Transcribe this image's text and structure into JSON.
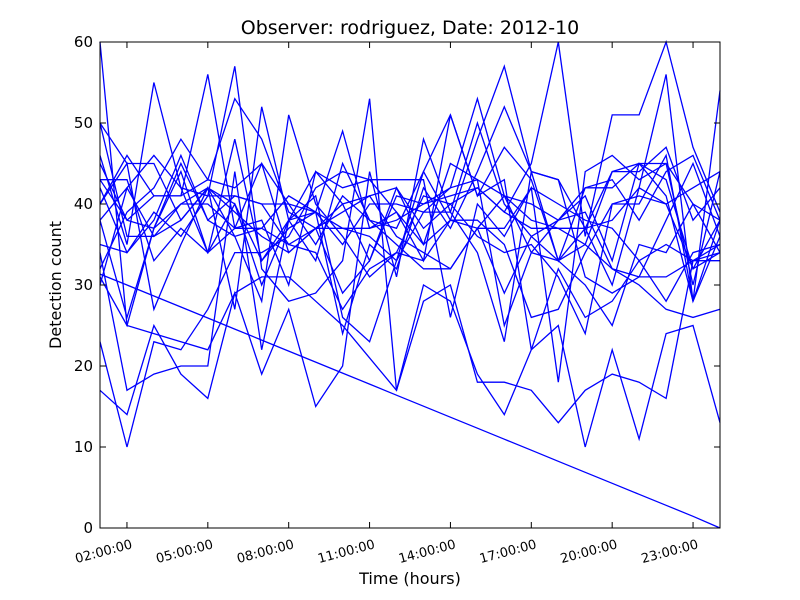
{
  "chart_data": {
    "type": "line",
    "title": "Observer: rodriguez, Date: 2012-10",
    "xlabel": "Time (hours)",
    "ylabel": "Detection count",
    "x_ticks": [
      "02:00:00",
      "05:00:00",
      "08:00:00",
      "11:00:00",
      "14:00:00",
      "17:00:00",
      "20:00:00",
      "23:00:00"
    ],
    "y_ticks": [
      "0",
      "10",
      "20",
      "30",
      "40",
      "50",
      "60"
    ],
    "xlim": [
      "2012-10-01 01:00",
      "2012-10-02 00:00"
    ],
    "ylim": [
      0,
      60
    ],
    "grid": false,
    "line_color": "#0000ff",
    "x": [
      "01:00",
      "02:00",
      "03:00",
      "04:00",
      "05:00",
      "06:00",
      "07:00",
      "08:00",
      "09:00",
      "10:00",
      "11:00",
      "12:00",
      "13:00",
      "14:00",
      "15:00",
      "16:00",
      "17:00",
      "18:00",
      "19:00",
      "20:00",
      "21:00",
      "22:00",
      "23:00",
      "00:00"
    ],
    "series": [
      {
        "values": [
          60,
          25,
          24,
          23,
          22,
          29,
          31,
          31,
          28,
          25,
          21,
          17,
          30,
          28,
          19,
          14,
          22,
          25,
          10,
          22,
          11,
          24,
          25,
          13
        ]
      },
      {
        "values": [
          23,
          10,
          23,
          22,
          27,
          34,
          34,
          36,
          42,
          44,
          43,
          39,
          33,
          51,
          41,
          47,
          43,
          33,
          37,
          38,
          42,
          56,
          28,
          38
        ]
      },
      {
        "values": [
          45,
          38,
          41,
          41,
          56,
          37,
          38,
          30,
          44,
          40,
          33,
          42,
          35,
          38,
          38,
          35,
          26,
          27,
          34,
          40,
          40,
          46,
          28,
          36
        ]
      },
      {
        "values": [
          30,
          42,
          46,
          42,
          34,
          37,
          37,
          41,
          39,
          37,
          37,
          39,
          35,
          45,
          43,
          41,
          38,
          37,
          35,
          44,
          44,
          47,
          38,
          42
        ]
      },
      {
        "values": [
          50,
          45,
          45,
          38,
          42,
          36,
          37,
          35,
          34,
          27,
          32,
          34,
          41,
          40,
          42,
          39,
          45,
          60,
          36,
          51,
          51,
          60,
          47,
          39
        ]
      },
      {
        "values": [
          40,
          45,
          27,
          35,
          42,
          27,
          52,
          38,
          39,
          24,
          35,
          32,
          42,
          37,
          44,
          52,
          44,
          43,
          37,
          44,
          45,
          43,
          32,
          38
        ]
      },
      {
        "values": [
          43,
          43,
          33,
          37,
          34,
          48,
          33,
          37,
          39,
          49,
          37,
          38,
          40,
          42,
          53,
          41,
          34,
          38,
          41,
          33,
          45,
          41,
          28,
          54
        ]
      },
      {
        "values": [
          46,
          35,
          55,
          42,
          41,
          57,
          32,
          28,
          29,
          33,
          53,
          17,
          28,
          30,
          18,
          18,
          17,
          13,
          17,
          19,
          18,
          16,
          33,
          35
        ]
      },
      {
        "values": [
          17,
          14,
          25,
          19,
          16,
          29,
          19,
          27,
          15,
          20,
          44,
          31,
          48,
          39,
          34,
          23,
          44,
          43,
          31,
          29,
          31,
          38,
          45,
          36
        ]
      },
      {
        "values": [
          43,
          38,
          37,
          45,
          38,
          36,
          28,
          51,
          40,
          36,
          31,
          34,
          33,
          38,
          48,
          57,
          44,
          33,
          42,
          42,
          45,
          45,
          30,
          44
        ]
      },
      {
        "values": [
          38,
          26,
          37,
          44,
          34,
          40,
          30,
          38,
          44,
          42,
          43,
          43,
          43,
          26,
          40,
          36,
          42,
          18,
          44,
          46,
          43,
          45,
          40,
          34
        ]
      },
      {
        "values": [
          40,
          46,
          41,
          41,
          43,
          42,
          45,
          40,
          39,
          35,
          40,
          40,
          39,
          39,
          50,
          40,
          36,
          38,
          42,
          43,
          38,
          44,
          46,
          38
        ]
      },
      {
        "values": [
          42,
          34,
          38,
          46,
          38,
          41,
          40,
          35,
          37,
          39,
          41,
          42,
          37,
          40,
          36,
          34,
          35,
          31,
          24,
          40,
          41,
          40,
          32,
          34
        ]
      },
      {
        "values": [
          34,
          17,
          19,
          20,
          20,
          44,
          22,
          38,
          41,
          26,
          23,
          33,
          39,
          42,
          43,
          25,
          34,
          33,
          30,
          25,
          35,
          34,
          40,
          38
        ]
      },
      {
        "values": [
          32,
          39,
          42,
          48,
          43,
          53,
          48,
          39,
          37,
          29,
          33,
          41,
          40,
          41,
          42,
          39,
          37,
          37,
          37,
          30,
          42,
          40,
          42,
          44
        ]
      },
      {
        "values": [
          38,
          42,
          36,
          40,
          40,
          37,
          45,
          34,
          37,
          37,
          36,
          33,
          44,
          51,
          41,
          43,
          22,
          32,
          26,
          28,
          33,
          28,
          34,
          35
        ]
      },
      {
        "values": [
          50,
          36,
          36,
          38,
          42,
          40,
          33,
          38,
          33,
          45,
          38,
          37,
          44,
          38,
          37,
          29,
          36,
          33,
          35,
          32,
          30,
          27,
          26,
          27
        ]
      },
      {
        "values": [
          31,
          25,
          37,
          40,
          42,
          39,
          36,
          34,
          37,
          40,
          41,
          36,
          34,
          32,
          37,
          41,
          40,
          38,
          39,
          32,
          31,
          31,
          33,
          33
        ]
      },
      {
        "values": [
          35,
          34,
          39,
          36,
          41,
          41,
          40,
          40,
          35,
          41,
          38,
          35,
          32,
          32,
          37,
          37,
          42,
          40,
          38,
          37,
          33,
          35,
          33,
          34
        ]
      },
      {
        "values": [
          31.34,
          30,
          28.64,
          27.28,
          25.92,
          24.56,
          23.2,
          21.84,
          20.48,
          19.12,
          17.76,
          16.4,
          15.04,
          13.68,
          12.32,
          10.96,
          9.6,
          8.24,
          6.88,
          5.52,
          4.16,
          2.8,
          1.44,
          0
        ]
      }
    ]
  }
}
